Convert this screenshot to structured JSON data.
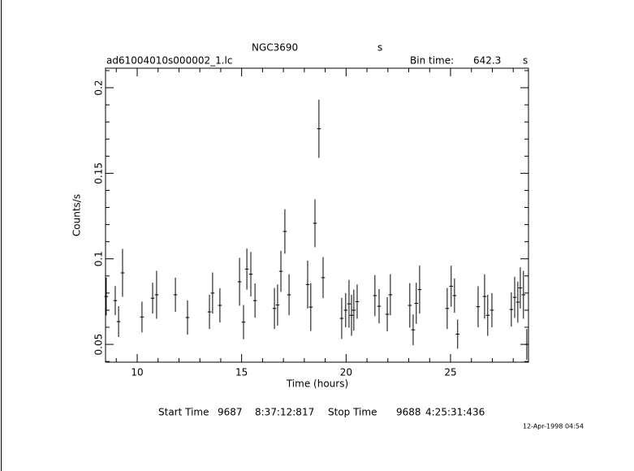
{
  "chart_data": {
    "type": "errorbar",
    "title": "NGC3690",
    "title_unit": "s",
    "file_name": "ad61004010s000002_1.lc",
    "bin_time_label": "Bin time:",
    "bin_time": 642.3,
    "bin_time_unit": "s",
    "x_label": "Time (hours)",
    "y_label": "Counts/s",
    "xlim": [
      8.485,
      28.73
    ],
    "ylim": [
      0.0396,
      0.2114
    ],
    "xticks": [
      10,
      15,
      20,
      25
    ],
    "yticks": [
      0.05,
      0.1,
      0.15,
      0.2
    ],
    "xminorticks": [
      9,
      11,
      12,
      13,
      14,
      16,
      17,
      18,
      19,
      21,
      22,
      23,
      24,
      26,
      27,
      28
    ],
    "yminorticks": [
      0.04,
      0.06,
      0.07,
      0.08,
      0.09,
      0.11,
      0.12,
      0.13,
      0.14,
      0.16,
      0.17,
      0.18,
      0.19,
      0.21
    ],
    "color": "#000000",
    "series": [
      {
        "x": [
          8.52,
          8.95,
          9.11,
          9.3,
          10.23,
          10.74,
          10.93,
          11.83,
          12.41,
          13.46,
          13.61,
          13.96,
          14.9,
          15.09,
          15.25,
          15.44,
          15.64,
          16.57,
          16.72,
          16.88,
          17.07,
          17.27,
          18.16,
          18.31,
          18.51,
          18.7,
          18.9,
          19.79,
          19.98,
          20.14,
          20.26,
          20.37,
          20.53,
          21.38,
          21.58,
          21.97,
          22.12,
          23.05,
          23.21,
          23.36,
          23.52,
          24.84,
          25.03,
          25.19,
          25.34,
          26.32,
          26.63,
          26.78,
          26.98,
          27.91,
          28.07,
          28.22,
          28.34,
          28.49,
          28.65
        ],
        "values": [
          0.078,
          0.0756,
          0.0633,
          0.0918,
          0.066,
          0.077,
          0.079,
          0.079,
          0.0657,
          0.069,
          0.08,
          0.0728,
          0.0866,
          0.063,
          0.094,
          0.091,
          0.0756,
          0.071,
          0.073,
          0.0927,
          0.116,
          0.079,
          0.085,
          0.0718,
          0.1208,
          0.176,
          0.089,
          0.0652,
          0.07,
          0.0737,
          0.067,
          0.07,
          0.075,
          0.0785,
          0.0723,
          0.0676,
          0.079,
          0.0728,
          0.0585,
          0.074,
          0.082,
          0.071,
          0.084,
          0.0785,
          0.056,
          0.072,
          0.078,
          0.067,
          0.07,
          0.0704,
          0.0775,
          0.0747,
          0.083,
          0.079,
          0.05
        ],
        "errors": [
          0.011,
          0.0085,
          0.009,
          0.014,
          0.009,
          0.009,
          0.014,
          0.01,
          0.01,
          0.01,
          0.012,
          0.01,
          0.014,
          0.01,
          0.012,
          0.013,
          0.01,
          0.012,
          0.012,
          0.012,
          0.013,
          0.012,
          0.014,
          0.014,
          0.014,
          0.017,
          0.012,
          0.012,
          0.01,
          0.014,
          0.012,
          0.012,
          0.01,
          0.012,
          0.01,
          0.01,
          0.012,
          0.013,
          0.009,
          0.012,
          0.014,
          0.012,
          0.012,
          0.01,
          0.0085,
          0.012,
          0.013,
          0.012,
          0.01,
          0.01,
          0.012,
          0.012,
          0.012,
          0.014,
          0.009
        ]
      }
    ],
    "footer": {
      "start_label": "Start Time",
      "start_day": "9687",
      "start_time": "8:37:12:817",
      "stop_label": "Stop Time",
      "stop_day": "9688",
      "stop_time": "4:25:31:436",
      "date": "12-Apr-1998 04:54"
    }
  }
}
